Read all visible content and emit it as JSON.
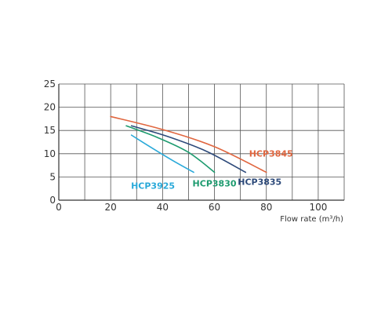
{
  "chart_data": {
    "type": "line",
    "title": "",
    "xlabel": "Flow rate (m³/h)",
    "ylabel": "",
    "xlim": [
      0,
      110
    ],
    "ylim": [
      0,
      25
    ],
    "xticks": [
      0,
      20,
      40,
      60,
      80,
      100
    ],
    "yticks": [
      0,
      5,
      10,
      15,
      20,
      25
    ],
    "grid": true,
    "legend": "inline labels next to curves",
    "series": [
      {
        "name": "HCP3925",
        "color": "#29a9d9",
        "x": [
          28,
          36,
          44,
          52
        ],
        "y": [
          14,
          11.2,
          8.5,
          6
        ]
      },
      {
        "name": "HCP3830",
        "color": "#1d9b6f",
        "x": [
          26,
          38,
          50,
          60
        ],
        "y": [
          16,
          13.5,
          10.3,
          6
        ]
      },
      {
        "name": "HCP3835",
        "color": "#2d4a7a",
        "x": [
          28,
          42,
          57,
          72
        ],
        "y": [
          16,
          13.7,
          10.5,
          6
        ]
      },
      {
        "name": "HCP3845",
        "color": "#e0663f",
        "x": [
          20,
          40,
          60,
          80
        ],
        "y": [
          18,
          15.2,
          11.5,
          6
        ]
      }
    ]
  }
}
